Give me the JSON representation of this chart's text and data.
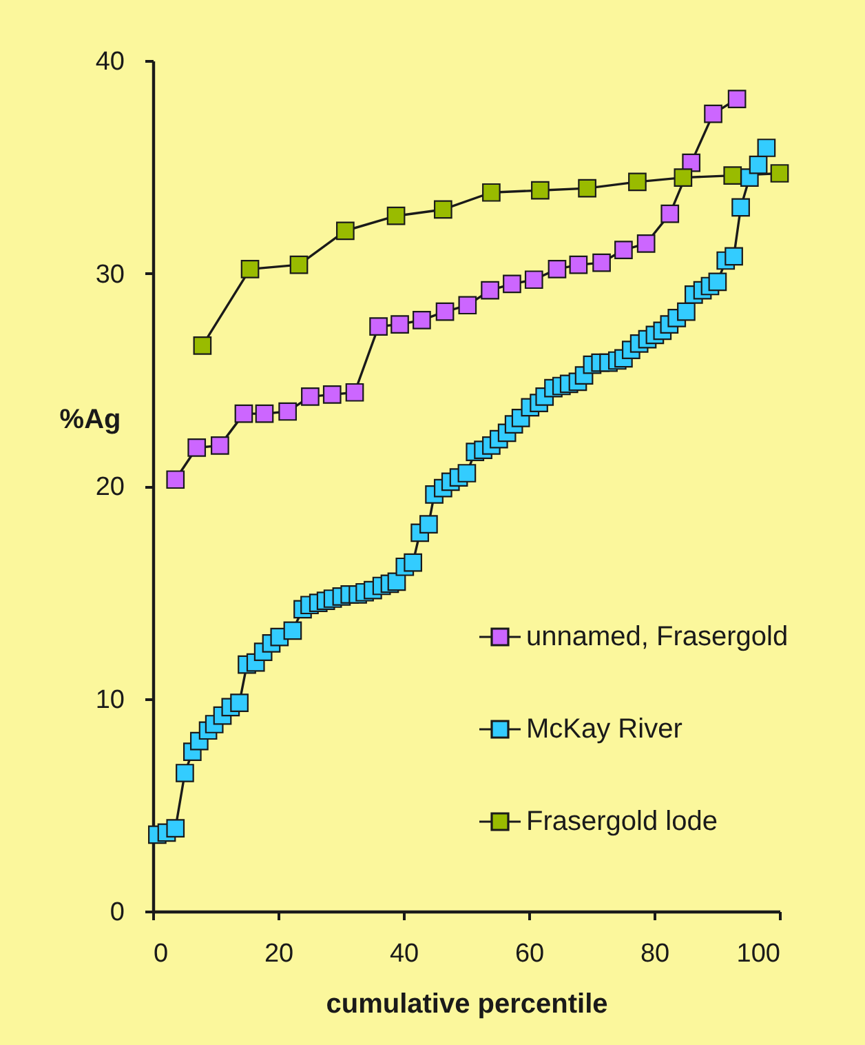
{
  "chart_data": {
    "type": "line",
    "xlabel": "cumulative percentile",
    "ylabel": "%Ag",
    "xlim": [
      0,
      100
    ],
    "xticks": [
      0,
      20,
      40,
      60,
      80,
      100
    ],
    "ylim": [
      0,
      40
    ],
    "yticks": [
      0,
      10,
      20,
      30,
      40
    ],
    "marker": "square",
    "line_style": "solid",
    "legend": "bottom right",
    "series": [
      {
        "name": "unnamed, Frasergold",
        "color": "#cc66ff",
        "x": [
          3.6,
          7.0,
          10.7,
          14.5,
          17.8,
          21.5,
          25.1,
          28.6,
          32.2,
          36.0,
          39.4,
          42.9,
          46.6,
          50.2,
          53.8,
          57.3,
          60.8,
          64.5,
          67.9,
          71.6,
          75.1,
          78.7,
          82.5,
          85.9,
          89.4,
          93.2
        ],
        "values": [
          20.3,
          21.8,
          21.9,
          23.4,
          23.4,
          23.5,
          24.2,
          24.3,
          24.4,
          27.5,
          27.6,
          27.8,
          28.2,
          28.5,
          29.2,
          29.5,
          29.7,
          30.2,
          30.4,
          30.5,
          31.1,
          31.4,
          32.8,
          35.2,
          37.5,
          38.2
        ]
      },
      {
        "name": "McKay River",
        "color": "#33ccff",
        "x": [
          0.7,
          2.2,
          3.6,
          5.1,
          6.3,
          7.4,
          8.8,
          9.8,
          11.1,
          12.4,
          13.8,
          15.0,
          16.4,
          17.6,
          18.9,
          20.2,
          22.3,
          23.9,
          25.0,
          26.4,
          27.6,
          28.7,
          30.1,
          31.4,
          32.7,
          33.8,
          35.1,
          36.5,
          37.8,
          38.9,
          40.2,
          41.5,
          42.6,
          44.0,
          44.9,
          46.3,
          47.5,
          48.8,
          50.1,
          51.4,
          52.7,
          54.0,
          55.2,
          56.5,
          57.6,
          58.7,
          60.2,
          61.6,
          62.5,
          63.9,
          65.2,
          66.4,
          67.8,
          68.8,
          70.1,
          71.4,
          72.7,
          74.1,
          75.1,
          76.3,
          77.6,
          78.9,
          80.1,
          81.3,
          82.4,
          83.6,
          85.1,
          86.3,
          87.7,
          88.9,
          90.1,
          91.4,
          92.7,
          93.8,
          95.2,
          96.6,
          97.9
        ],
        "values": [
          3.6,
          3.7,
          3.9,
          6.5,
          7.5,
          8.0,
          8.5,
          8.8,
          9.2,
          9.6,
          9.8,
          11.6,
          11.7,
          12.2,
          12.6,
          12.9,
          13.2,
          14.2,
          14.4,
          14.5,
          14.6,
          14.7,
          14.8,
          14.9,
          14.9,
          15.0,
          15.1,
          15.3,
          15.4,
          15.5,
          16.2,
          16.4,
          17.8,
          18.2,
          19.6,
          19.9,
          20.2,
          20.4,
          20.6,
          21.6,
          21.7,
          21.9,
          22.2,
          22.5,
          22.9,
          23.2,
          23.7,
          23.9,
          24.2,
          24.6,
          24.7,
          24.8,
          24.9,
          25.2,
          25.7,
          25.8,
          25.8,
          25.9,
          26.0,
          26.4,
          26.7,
          26.9,
          27.1,
          27.3,
          27.6,
          27.9,
          28.2,
          29.0,
          29.2,
          29.4,
          29.6,
          30.6,
          30.8,
          33.1,
          34.5,
          35.1,
          35.9
        ]
      },
      {
        "name": "Frasergold lode",
        "color": "#99bb00",
        "x": [
          7.9,
          15.5,
          23.3,
          30.7,
          38.8,
          46.3,
          54.0,
          61.8,
          69.3,
          77.3,
          84.6,
          92.5,
          100
        ],
        "values": [
          26.6,
          30.2,
          30.4,
          32.0,
          32.7,
          33.0,
          33.8,
          33.9,
          34.0,
          34.3,
          34.5,
          34.6,
          34.7
        ]
      }
    ]
  }
}
